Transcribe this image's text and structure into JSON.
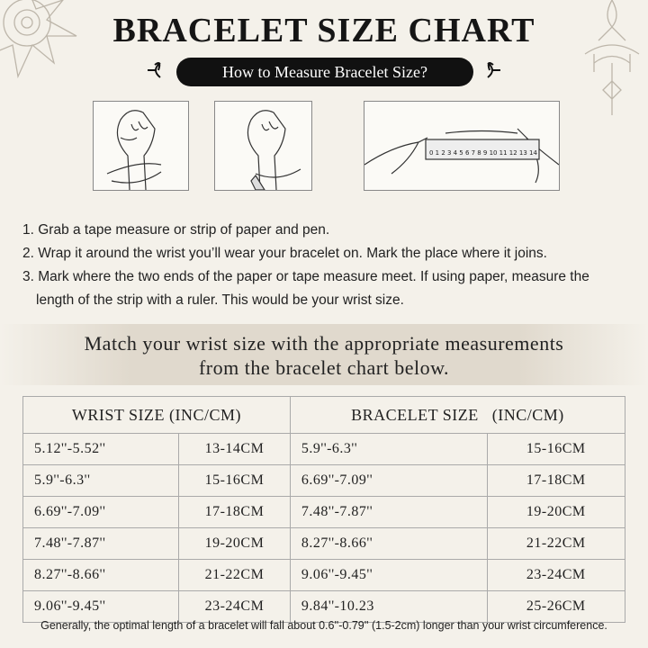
{
  "header": {
    "title": "BRACELET SIZE CHART",
    "subtitle": "How to Measure Bracelet Size?"
  },
  "ruler": [
    "0",
    "1",
    "2",
    "3",
    "4",
    "5",
    "6",
    "7",
    "8",
    "9",
    "10",
    "11",
    "12",
    "13",
    "14"
  ],
  "steps": [
    "1. Grab a tape measure or strip of paper and pen.",
    "2. Wrap it around the wrist you’ll wear your bracelet on. Mark the place where it joins.",
    "3. Mark where the two ends of the paper or tape measure meet. If using paper, measure the length of the strip with a ruler. This would be your wrist size."
  ],
  "banner": [
    "Match your wrist size with the appropriate measurements",
    "from the bracelet chart below."
  ],
  "table": {
    "headers": [
      "WRIST SIZE (INC/CM)",
      "BRACELET SIZE   (INC/CM)"
    ],
    "rows": [
      [
        "5.12''-5.52''",
        "13-14CM",
        "5.9''-6.3''",
        "15-16CM"
      ],
      [
        "5.9''-6.3''",
        "15-16CM",
        "6.69''-7.09''",
        "17-18CM"
      ],
      [
        "6.69''-7.09''",
        "17-18CM",
        "7.48''-7.87''",
        "19-20CM"
      ],
      [
        "7.48''-7.87''",
        "19-20CM",
        "8.27''-8.66''",
        "21-22CM"
      ],
      [
        "8.27''-8.66''",
        "21-22CM",
        "9.06''-9.45''",
        "23-24CM"
      ],
      [
        "9.06''-9.45''",
        "23-24CM",
        "9.84''-10.23",
        "25-26CM"
      ]
    ]
  },
  "footer": {
    "note": "Generally, the optimal length of a bracelet will fall about 0.6''-0.79'' (1.5-2cm) longer than your wrist circumference."
  }
}
